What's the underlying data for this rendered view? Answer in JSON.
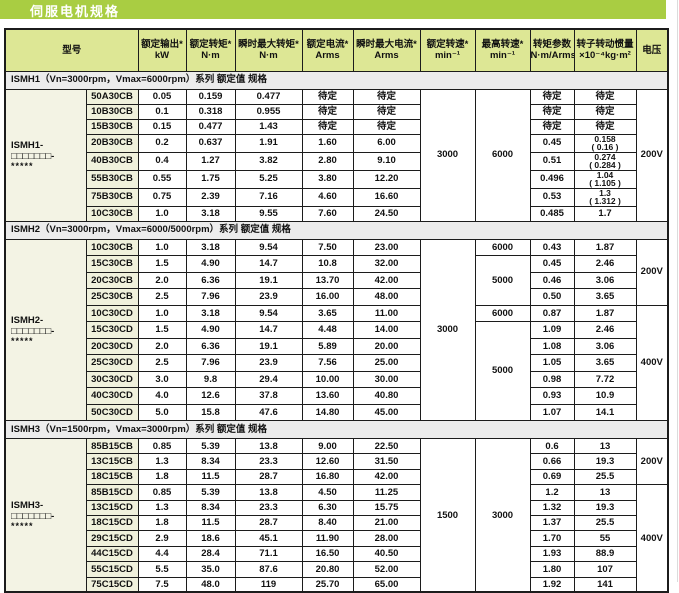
{
  "title": "伺服电机规格",
  "table": {
    "model_header": "型号",
    "columns": [
      {
        "label": "额定输出*",
        "unit": "kW"
      },
      {
        "label": "额定转矩*",
        "unit": "N·m"
      },
      {
        "label": "瞬时最大转矩*",
        "unit": "N·m"
      },
      {
        "label": "额定电流*",
        "unit": "Arms"
      },
      {
        "label": "瞬时最大电流*",
        "unit": "Arms"
      },
      {
        "label": "额定转速*",
        "unit": "min⁻¹"
      },
      {
        "label": "最高转速*",
        "unit": "min⁻¹"
      },
      {
        "label": "转矩参数",
        "unit": "N·m/Arms"
      },
      {
        "label": "转子转动惯量",
        "unit": "×10⁻⁴kg·m²"
      },
      {
        "label": "电压",
        "unit": ""
      }
    ],
    "sections": [
      {
        "header": "ISMH1（Vn=3000rpm，Vmax=6000rpm）系列 额定值 规格",
        "group_label": [
          "ISMH1-",
          "□□□□□□□-",
          "*****"
        ],
        "rows": [
          {
            "model": "50A30CB",
            "output": "0.05",
            "torque": "0.159",
            "torque_max": "0.477",
            "current": "待定",
            "current_max": "待定",
            "torque_param": "待定",
            "inertia": "待定"
          },
          {
            "model": "10B30CB",
            "output": "0.1",
            "torque": "0.318",
            "torque_max": "0.955",
            "current": "待定",
            "current_max": "待定",
            "torque_param": "待定",
            "inertia": "待定"
          },
          {
            "model": "15B30CB",
            "output": "0.15",
            "torque": "0.477",
            "torque_max": "1.43",
            "current": "待定",
            "current_max": "待定",
            "torque_param": "待定",
            "inertia": "待定"
          },
          {
            "model": "20B30CB",
            "output": "0.2",
            "torque": "0.637",
            "torque_max": "1.91",
            "current": "1.60",
            "current_max": "6.00",
            "torque_param": "0.45",
            "inertia": "0.158",
            "inertia2": "( 0.16 )"
          },
          {
            "model": "40B30CB",
            "output": "0.4",
            "torque": "1.27",
            "torque_max": "3.82",
            "current": "2.80",
            "current_max": "9.10",
            "torque_param": "0.51",
            "inertia": "0.274",
            "inertia2": "( 0.284 )"
          },
          {
            "model": "55B30CB",
            "output": "0.55",
            "torque": "1.75",
            "torque_max": "5.25",
            "current": "3.80",
            "current_max": "12.20",
            "torque_param": "0.496",
            "inertia": "1.04",
            "inertia2": "( 1.105 )"
          },
          {
            "model": "75B30CB",
            "output": "0.75",
            "torque": "2.39",
            "torque_max": "7.16",
            "current": "4.60",
            "current_max": "16.60",
            "torque_param": "0.53",
            "inertia": "1.3",
            "inertia2": "( 1.312 )"
          },
          {
            "model": "10C30CB",
            "output": "1.0",
            "torque": "3.18",
            "torque_max": "9.55",
            "current": "7.60",
            "current_max": "24.50",
            "torque_param": "0.485",
            "inertia": "1.7"
          }
        ],
        "speed_rated_spans": [
          {
            "value": "3000",
            "rows": 8
          }
        ],
        "speed_max_spans": [
          {
            "value": "6000",
            "rows": 8
          }
        ],
        "voltage_spans": [
          {
            "value": "200V",
            "rows": 8
          }
        ]
      },
      {
        "header": "ISMH2（Vn=3000rpm，Vmax=6000/5000rpm）系列 额定值 规格",
        "group_label": [
          "ISMH2-",
          "□□□□□□□-",
          "*****"
        ],
        "rows": [
          {
            "model": "10C30CB",
            "output": "1.0",
            "torque": "3.18",
            "torque_max": "9.54",
            "current": "7.50",
            "current_max": "23.00",
            "torque_param": "0.43",
            "inertia": "1.87"
          },
          {
            "model": "15C30CB",
            "output": "1.5",
            "torque": "4.90",
            "torque_max": "14.7",
            "current": "10.8",
            "current_max": "32.00",
            "torque_param": "0.45",
            "inertia": "2.46"
          },
          {
            "model": "20C30CB",
            "output": "2.0",
            "torque": "6.36",
            "torque_max": "19.1",
            "current": "13.70",
            "current_max": "42.00",
            "torque_param": "0.46",
            "inertia": "3.06"
          },
          {
            "model": "25C30CB",
            "output": "2.5",
            "torque": "7.96",
            "torque_max": "23.9",
            "current": "16.00",
            "current_max": "48.00",
            "torque_param": "0.50",
            "inertia": "3.65"
          },
          {
            "model": "10C30CD",
            "output": "1.0",
            "torque": "3.18",
            "torque_max": "9.54",
            "current": "3.65",
            "current_max": "11.00",
            "torque_param": "0.87",
            "inertia": "1.87"
          },
          {
            "model": "15C30CD",
            "output": "1.5",
            "torque": "4.90",
            "torque_max": "14.7",
            "current": "4.48",
            "current_max": "14.00",
            "torque_param": "1.09",
            "inertia": "2.46"
          },
          {
            "model": "20C30CD",
            "output": "2.0",
            "torque": "6.36",
            "torque_max": "19.1",
            "current": "5.89",
            "current_max": "20.00",
            "torque_param": "1.08",
            "inertia": "3.06"
          },
          {
            "model": "25C30CD",
            "output": "2.5",
            "torque": "7.96",
            "torque_max": "23.9",
            "current": "7.56",
            "current_max": "25.00",
            "torque_param": "1.05",
            "inertia": "3.65"
          },
          {
            "model": "30C30CD",
            "output": "3.0",
            "torque": "9.8",
            "torque_max": "29.4",
            "current": "10.00",
            "current_max": "30.00",
            "torque_param": "0.98",
            "inertia": "7.72"
          },
          {
            "model": "40C30CD",
            "output": "4.0",
            "torque": "12.6",
            "torque_max": "37.8",
            "current": "13.60",
            "current_max": "40.80",
            "torque_param": "0.93",
            "inertia": "10.9"
          },
          {
            "model": "50C30CD",
            "output": "5.0",
            "torque": "15.8",
            "torque_max": "47.6",
            "current": "14.80",
            "current_max": "45.00",
            "torque_param": "1.07",
            "inertia": "14.1"
          }
        ],
        "speed_rated_spans": [
          {
            "value": "3000",
            "rows": 11
          }
        ],
        "speed_max_spans": [
          {
            "value": "6000",
            "rows": 1
          },
          {
            "value": "5000",
            "rows": 3
          },
          {
            "value": "6000",
            "rows": 1
          },
          {
            "value": "5000",
            "rows": 6
          }
        ],
        "voltage_spans": [
          {
            "value": "200V",
            "rows": 4
          },
          {
            "value": "400V",
            "rows": 7
          }
        ]
      },
      {
        "header": "ISMH3（Vn=1500rpm，Vmax=3000rpm）系列 额定值 规格",
        "group_label": [
          "ISMH3-",
          "□□□□□□□-",
          "*****"
        ],
        "rows": [
          {
            "model": "85B15CB",
            "output": "0.85",
            "torque": "5.39",
            "torque_max": "13.8",
            "current": "9.00",
            "current_max": "22.50",
            "torque_param": "0.6",
            "inertia": "13"
          },
          {
            "model": "13C15CB",
            "output": "1.3",
            "torque": "8.34",
            "torque_max": "23.3",
            "current": "12.60",
            "current_max": "31.50",
            "torque_param": "0.66",
            "inertia": "19.3"
          },
          {
            "model": "18C15CB",
            "output": "1.8",
            "torque": "11.5",
            "torque_max": "28.7",
            "current": "16.80",
            "current_max": "42.00",
            "torque_param": "0.69",
            "inertia": "25.5"
          },
          {
            "model": "85B15CD",
            "output": "0.85",
            "torque": "5.39",
            "torque_max": "13.8",
            "current": "4.50",
            "current_max": "11.25",
            "torque_param": "1.2",
            "inertia": "13"
          },
          {
            "model": "13C15CD",
            "output": "1.3",
            "torque": "8.34",
            "torque_max": "23.3",
            "current": "6.30",
            "current_max": "15.75",
            "torque_param": "1.32",
            "inertia": "19.3"
          },
          {
            "model": "18C15CD",
            "output": "1.8",
            "torque": "11.5",
            "torque_max": "28.7",
            "current": "8.40",
            "current_max": "21.00",
            "torque_param": "1.37",
            "inertia": "25.5"
          },
          {
            "model": "29C15CD",
            "output": "2.9",
            "torque": "18.6",
            "torque_max": "45.1",
            "current": "11.90",
            "current_max": "28.00",
            "torque_param": "1.70",
            "inertia": "55"
          },
          {
            "model": "44C15CD",
            "output": "4.4",
            "torque": "28.4",
            "torque_max": "71.1",
            "current": "16.50",
            "current_max": "40.50",
            "torque_param": "1.93",
            "inertia": "88.9"
          },
          {
            "model": "55C15CD",
            "output": "5.5",
            "torque": "35.0",
            "torque_max": "87.6",
            "current": "20.80",
            "current_max": "52.00",
            "torque_param": "1.80",
            "inertia": "107"
          },
          {
            "model": "75C15CD",
            "output": "7.5",
            "torque": "48.0",
            "torque_max": "119",
            "current": "25.70",
            "current_max": "65.00",
            "torque_param": "1.92",
            "inertia": "141"
          }
        ],
        "speed_rated_spans": [
          {
            "value": "1500",
            "rows": 10
          }
        ],
        "speed_max_spans": [
          {
            "value": "3000",
            "rows": 10
          }
        ],
        "voltage_spans": [
          {
            "value": "200V",
            "rows": 3
          },
          {
            "value": "400V",
            "rows": 7
          }
        ]
      }
    ]
  }
}
